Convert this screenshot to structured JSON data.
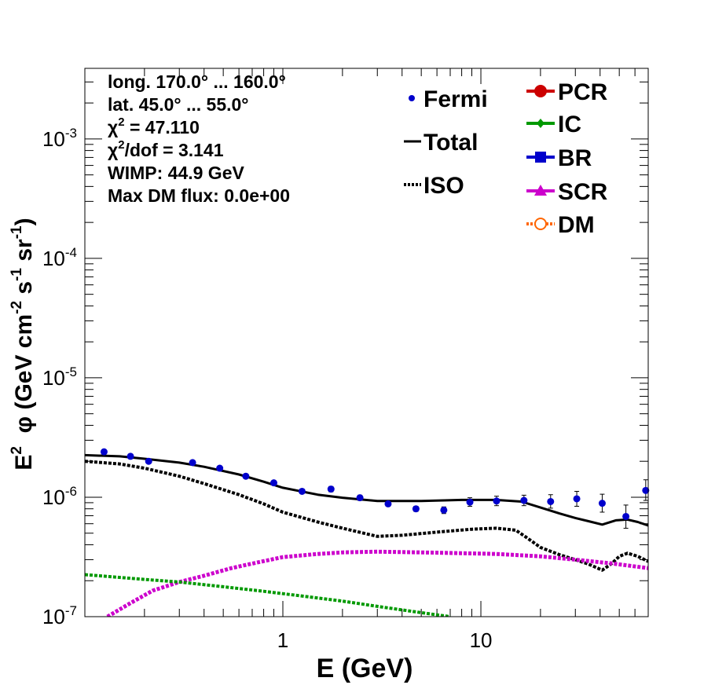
{
  "chart_data": {
    "type": "line",
    "xscale": "log",
    "yscale": "log",
    "xlim": [
      0.1,
      70
    ],
    "ylim": [
      1e-07,
      0.0039
    ],
    "xlabel": "E (GeV)",
    "ylabel": "E² φ (GeV cm⁻² s⁻¹ sr⁻¹)",
    "ylabel_parts": [
      "E",
      "2",
      "  φ (GeV cm",
      "-2",
      " s",
      "-1",
      " sr",
      "-1",
      ")"
    ],
    "x_ticks": [
      {
        "v": 1,
        "label": "1"
      },
      {
        "v": 10,
        "label": "10"
      }
    ],
    "y_ticks": [
      {
        "v": 1e-07,
        "base": "10",
        "exp": "-7"
      },
      {
        "v": 1e-06,
        "base": "10",
        "exp": "-6"
      },
      {
        "v": 1e-05,
        "base": "10",
        "exp": "-5"
      },
      {
        "v": 0.0001,
        "base": "10",
        "exp": "-4"
      },
      {
        "v": 0.001,
        "base": "10",
        "exp": "-3"
      }
    ],
    "info_lines": [
      {
        "text": "long. 170.0° ... 160.0°"
      },
      {
        "text": "lat. 45.0° ... 55.0°"
      },
      {
        "base": "χ",
        "sup": "2",
        "rest": " = 47.110"
      },
      {
        "base": "χ",
        "sup": "2",
        "rest": "/dof = 3.141"
      },
      {
        "text": "WIMP: 44.9 GeV"
      },
      {
        "text": "Max DM flux: 0.0e+00"
      }
    ],
    "legend_left": [
      {
        "label": "Fermi",
        "style": "marker",
        "color": "#0000cc"
      },
      {
        "label": "Total",
        "style": "solid",
        "color": "#000000"
      },
      {
        "label": "ISO",
        "style": "dotted",
        "color": "#000000"
      }
    ],
    "legend_right": [
      {
        "label": "PCR",
        "style": "circle",
        "color": "#cc0000"
      },
      {
        "label": "IC",
        "style": "diamond",
        "color": "#009900"
      },
      {
        "label": "BR",
        "style": "square",
        "color": "#0000cc"
      },
      {
        "label": "SCR",
        "style": "triangle",
        "color": "#cc00cc"
      },
      {
        "label": "DM",
        "style": "opencircle",
        "color": "#ff6600"
      }
    ],
    "fermi": {
      "name": "Fermi",
      "points": [
        {
          "x": 0.125,
          "y": 2.4e-06,
          "lo": 2.3e-06,
          "hi": 2.5e-06
        },
        {
          "x": 0.17,
          "y": 2.2e-06,
          "lo": 2.1e-06,
          "hi": 2.3e-06
        },
        {
          "x": 0.21,
          "y": 2e-06,
          "lo": 1.92e-06,
          "hi": 2.08e-06
        },
        {
          "x": 0.35,
          "y": 1.95e-06,
          "lo": 1.87e-06,
          "hi": 2.03e-06
        },
        {
          "x": 0.48,
          "y": 1.75e-06,
          "lo": 1.68e-06,
          "hi": 1.82e-06
        },
        {
          "x": 0.65,
          "y": 1.5e-06,
          "lo": 1.44e-06,
          "hi": 1.56e-06
        },
        {
          "x": 0.9,
          "y": 1.32e-06,
          "lo": 1.27e-06,
          "hi": 1.37e-06
        },
        {
          "x": 1.25,
          "y": 1.12e-06,
          "lo": 1.07e-06,
          "hi": 1.17e-06
        },
        {
          "x": 1.75,
          "y": 1.17e-06,
          "lo": 1.11e-06,
          "hi": 1.23e-06
        },
        {
          "x": 2.45,
          "y": 9.9e-07,
          "lo": 9.4e-07,
          "hi": 1.04e-06
        },
        {
          "x": 3.4,
          "y": 8.8e-07,
          "lo": 8.4e-07,
          "hi": 9.2e-07
        },
        {
          "x": 4.7,
          "y": 8e-07,
          "lo": 7.6e-07,
          "hi": 8.4e-07
        },
        {
          "x": 6.5,
          "y": 7.8e-07,
          "lo": 7.3e-07,
          "hi": 8.3e-07
        },
        {
          "x": 8.8,
          "y": 9.1e-07,
          "lo": 8.4e-07,
          "hi": 9.9e-07
        },
        {
          "x": 12,
          "y": 9.3e-07,
          "lo": 8.5e-07,
          "hi": 1.02e-06
        },
        {
          "x": 16.5,
          "y": 9.4e-07,
          "lo": 8.5e-07,
          "hi": 1.04e-06
        },
        {
          "x": 22.5,
          "y": 9.2e-07,
          "lo": 8.1e-07,
          "hi": 1.05e-06
        },
        {
          "x": 30.5,
          "y": 9.7e-07,
          "lo": 8.4e-07,
          "hi": 1.12e-06
        },
        {
          "x": 41,
          "y": 8.9e-07,
          "lo": 7.5e-07,
          "hi": 1.06e-06
        },
        {
          "x": 54,
          "y": 6.9e-07,
          "lo": 5.5e-07,
          "hi": 8.6e-07
        },
        {
          "x": 68,
          "y": 1.14e-06,
          "lo": 9.4e-07,
          "hi": 1.4e-06
        }
      ]
    },
    "series": [
      {
        "name": "Total",
        "style": "solid",
        "color": "#000000",
        "width": 3,
        "x": [
          0.1,
          0.15,
          0.2,
          0.3,
          0.4,
          0.6,
          0.8,
          1.0,
          1.5,
          2.0,
          3.0,
          5.0,
          8.0,
          12.0,
          16.0,
          20.0,
          25.0,
          30.0,
          35.0,
          41.0,
          48.0,
          55.0,
          62.0,
          70.0
        ],
        "y": [
          2.25e-06,
          2.2e-06,
          2.1e-06,
          1.95e-06,
          1.8e-06,
          1.55e-06,
          1.35e-06,
          1.2e-06,
          1.05e-06,
          9.9e-07,
          9.3e-07,
          9.3e-07,
          9.5e-07,
          9.5e-07,
          9.2e-07,
          8.2e-07,
          7.3e-07,
          6.7e-07,
          6.3e-07,
          5.9e-07,
          6.4e-07,
          6.5e-07,
          6.2e-07,
          5.8e-07
        ]
      },
      {
        "name": "ISO",
        "style": "dotted",
        "color": "#000000",
        "width": 4,
        "x": [
          0.1,
          0.15,
          0.2,
          0.3,
          0.4,
          0.6,
          0.8,
          1.0,
          1.5,
          2.0,
          3.0,
          4.0,
          6.0,
          9.0,
          12.0,
          15.0,
          17.0,
          20.0,
          25.0,
          30.0,
          35.0,
          41.0,
          46.0,
          50.0,
          55.0,
          62.0,
          70.0
        ],
        "y": [
          2e-06,
          1.9e-06,
          1.75e-06,
          1.5e-06,
          1.3e-06,
          1.05e-06,
          8.8e-07,
          7.5e-07,
          6.2e-07,
          5.5e-07,
          4.7e-07,
          4.8e-07,
          5.1e-07,
          5.4e-07,
          5.5e-07,
          5.3e-07,
          4.6e-07,
          3.8e-07,
          3.3e-07,
          3e-07,
          2.75e-07,
          2.45e-07,
          2.8e-07,
          3.2e-07,
          3.4e-07,
          3.2e-07,
          2.9e-07
        ]
      },
      {
        "name": "SCR",
        "style": "dotted",
        "color": "#cc00cc",
        "width": 5,
        "x": [
          0.13,
          0.17,
          0.22,
          0.3,
          0.4,
          0.55,
          0.75,
          1.0,
          1.5,
          2.0,
          3.0,
          5.0,
          8.0,
          12.0,
          20.0,
          30.0,
          45.0,
          70.0
        ],
        "y": [
          1e-07,
          1.3e-07,
          1.65e-07,
          1.95e-07,
          2.2e-07,
          2.55e-07,
          2.85e-07,
          3.15e-07,
          3.35e-07,
          3.45e-07,
          3.5e-07,
          3.45e-07,
          3.4e-07,
          3.35e-07,
          3.2e-07,
          3e-07,
          2.8e-07,
          2.55e-07
        ]
      },
      {
        "name": "IC",
        "style": "dotted",
        "color": "#009900",
        "width": 4,
        "x": [
          0.1,
          0.2,
          0.3,
          0.5,
          0.8,
          1.2,
          2.0,
          3.0,
          5.0,
          7.0
        ],
        "y": [
          2.25e-07,
          2.05e-07,
          1.95e-07,
          1.78e-07,
          1.63e-07,
          1.5e-07,
          1.35e-07,
          1.22e-07,
          1.08e-07,
          1e-07
        ]
      }
    ]
  }
}
